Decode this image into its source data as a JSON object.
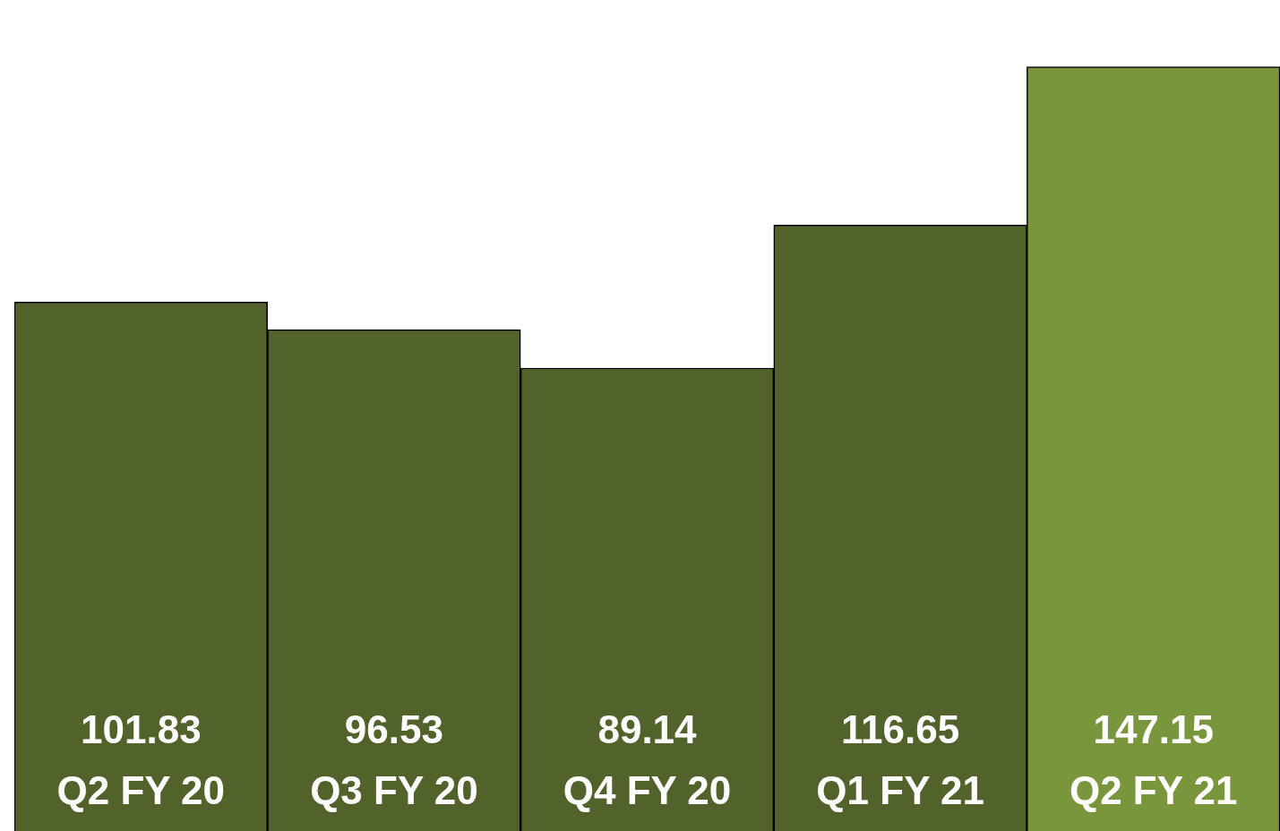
{
  "chart_data": {
    "type": "bar",
    "categories": [
      "Q2 FY 20",
      "Q3 FY 20",
      "Q4 FY 20",
      "Q1 FY 21",
      "Q2 FY 21"
    ],
    "values": [
      101.83,
      96.53,
      89.14,
      116.65,
      147.15
    ],
    "colors": [
      "#51632a",
      "#51632a",
      "#51632a",
      "#51632a",
      "#7a963c"
    ],
    "tick_labels": "x",
    "data_labels": true,
    "legend": false
  }
}
